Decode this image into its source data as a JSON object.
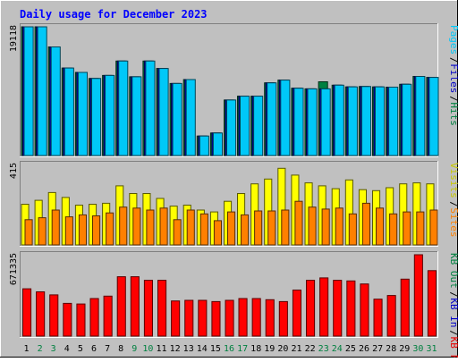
{
  "chart_data": {
    "type": "bar",
    "title": "Daily usage for December 2023",
    "x": [
      1,
      2,
      3,
      4,
      5,
      6,
      7,
      8,
      9,
      10,
      11,
      12,
      13,
      14,
      15,
      16,
      17,
      18,
      19,
      20,
      21,
      22,
      23,
      24,
      25,
      26,
      27,
      28,
      29,
      30,
      31
    ],
    "weekend_days": [
      2,
      3,
      9,
      10,
      16,
      17,
      23,
      24,
      30,
      31
    ],
    "panels": [
      {
        "id": "top",
        "max_label": "19118",
        "ylim": [
          0,
          19118
        ],
        "legend": [
          {
            "text": "Pages",
            "color": "#00c8f8"
          },
          {
            "text": "Files",
            "color": "#0000c8"
          },
          {
            "text": "Hits",
            "color": "#008040"
          }
        ],
        "series": [
          {
            "name": "Hits",
            "color": "#008040",
            "values": [
              19118,
              19118,
              16130,
              13000,
              12350,
              11450,
              11900,
              14030,
              11700,
              14030,
              12930,
              10700,
              11280,
              2900,
              3350,
              8250,
              8810,
              8810,
              10800,
              11200,
              10000,
              9900,
              10950,
              10450,
              10200,
              10250,
              10200,
              10150,
              10580,
              11750,
              11600
            ]
          },
          {
            "name": "Files",
            "color": "#0000c8",
            "values": [
              19118,
              19118,
              16130,
              13000,
              12350,
              11450,
              11900,
              14030,
              11700,
              14030,
              12930,
              10700,
              11280,
              2900,
              3350,
              8250,
              8810,
              8810,
              10800,
              11200,
              10000,
              9900,
              9900,
              10450,
              10200,
              10250,
              10200,
              10150,
              10580,
              11750,
              11600
            ]
          },
          {
            "name": "Pages",
            "color": "#00c8f8",
            "values": [
              19118,
              19118,
              16130,
              13000,
              12350,
              11450,
              11900,
              14030,
              11700,
              14030,
              12930,
              10700,
              11280,
              2900,
              3350,
              8250,
              8810,
              8810,
              10800,
              11200,
              10000,
              9900,
              9900,
              10450,
              10200,
              10250,
              10200,
              10150,
              10580,
              11750,
              11600
            ]
          }
        ]
      },
      {
        "id": "middle",
        "max_label": "415",
        "ylim": [
          0,
          415
        ],
        "legend": [
          {
            "text": "Visits",
            "color": "#c8c800"
          },
          {
            "text": "Sites",
            "color": "#ff8000"
          }
        ],
        "series": [
          {
            "name": "Visits",
            "color": "#ffff00",
            "values": [
              210,
              230,
              270,
              245,
              205,
              210,
              215,
              305,
              265,
              265,
              240,
              200,
              205,
              180,
              170,
              225,
              265,
              315,
              340,
              395,
              360,
              320,
              305,
              290,
              335,
              285,
              280,
              295,
              315,
              320,
              315
            ]
          },
          {
            "name": "Sites",
            "color": "#ff8000",
            "values": [
              130,
              140,
              180,
              145,
              155,
              150,
              165,
              195,
              190,
              180,
              190,
              130,
              180,
              160,
              125,
              170,
              155,
              175,
              175,
              180,
              225,
              195,
              185,
              190,
              160,
              215,
              190,
              160,
              170,
              170,
              180
            ]
          }
        ]
      },
      {
        "id": "bottom",
        "max_label": "671335",
        "ylim": [
          0,
          671335
        ],
        "legend": [
          {
            "text": "KB Out",
            "color": "#008040"
          },
          {
            "text": "KB In",
            "color": "#0000c8"
          },
          {
            "text": "KB F",
            "color": "#e80000"
          }
        ],
        "series": [
          {
            "name": "KB F",
            "color": "#ff0000",
            "values": [
              390000,
              365000,
              340000,
              270000,
              265000,
              310000,
              330000,
              490000,
              490000,
              460000,
              460000,
              290000,
              295000,
              295000,
              285000,
              295000,
              310000,
              310000,
              300000,
              285000,
              380000,
              460000,
              480000,
              460000,
              455000,
              430000,
              305000,
              335000,
              470000,
              671335,
              540000
            ]
          }
        ]
      }
    ]
  }
}
